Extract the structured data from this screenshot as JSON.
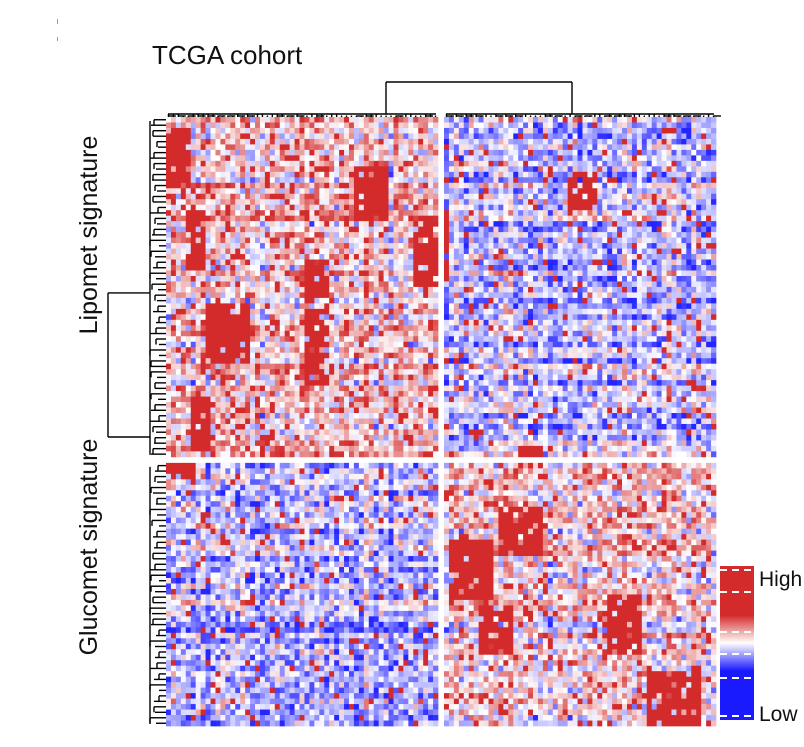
{
  "chart_data": {
    "type": "heatmap",
    "title": "TCGA cohort",
    "row_groups": [
      {
        "name": "Lipomet signature"
      },
      {
        "name": "Glucomet signature"
      }
    ],
    "column_clusters": 2,
    "n_rows": 110,
    "n_cols": 110,
    "color_scale": {
      "high_label": "High",
      "low_label": "Low",
      "high_color": "#d32b2b",
      "mid_color": "#ffffff",
      "low_color": "#1a1aff"
    },
    "block_pattern": [
      {
        "row_group": "Lipomet signature",
        "column_cluster": 1,
        "level": "high"
      },
      {
        "row_group": "Lipomet signature",
        "column_cluster": 2,
        "level": "low"
      },
      {
        "row_group": "Glucomet signature",
        "column_cluster": 1,
        "level": "low"
      },
      {
        "row_group": "Glucomet signature",
        "column_cluster": 2,
        "level": "high"
      }
    ],
    "dendrograms": {
      "rows": true,
      "columns": true
    },
    "legend_position": "right"
  }
}
